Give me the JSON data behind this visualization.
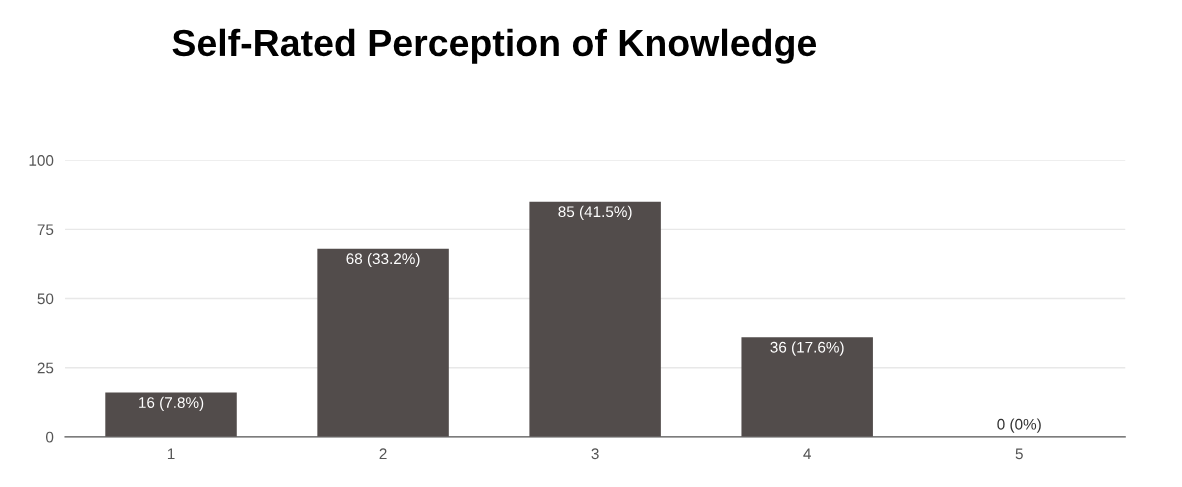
{
  "chart_data": {
    "type": "bar",
    "title": "Self-Rated Perception of Knowledge",
    "categories": [
      "1",
      "2",
      "3",
      "4",
      "5"
    ],
    "values": [
      16,
      68,
      85,
      36,
      0
    ],
    "value_labels": [
      "16 (7.8%)",
      "68 (33.2%)",
      "85 (41.5%)",
      "36 (17.6%)",
      "0 (0%)"
    ],
    "color": "#524c4b",
    "ylim": [
      0,
      100
    ],
    "yticks": [
      0,
      25,
      50,
      75,
      100
    ],
    "grid": "y",
    "legend": false
  }
}
